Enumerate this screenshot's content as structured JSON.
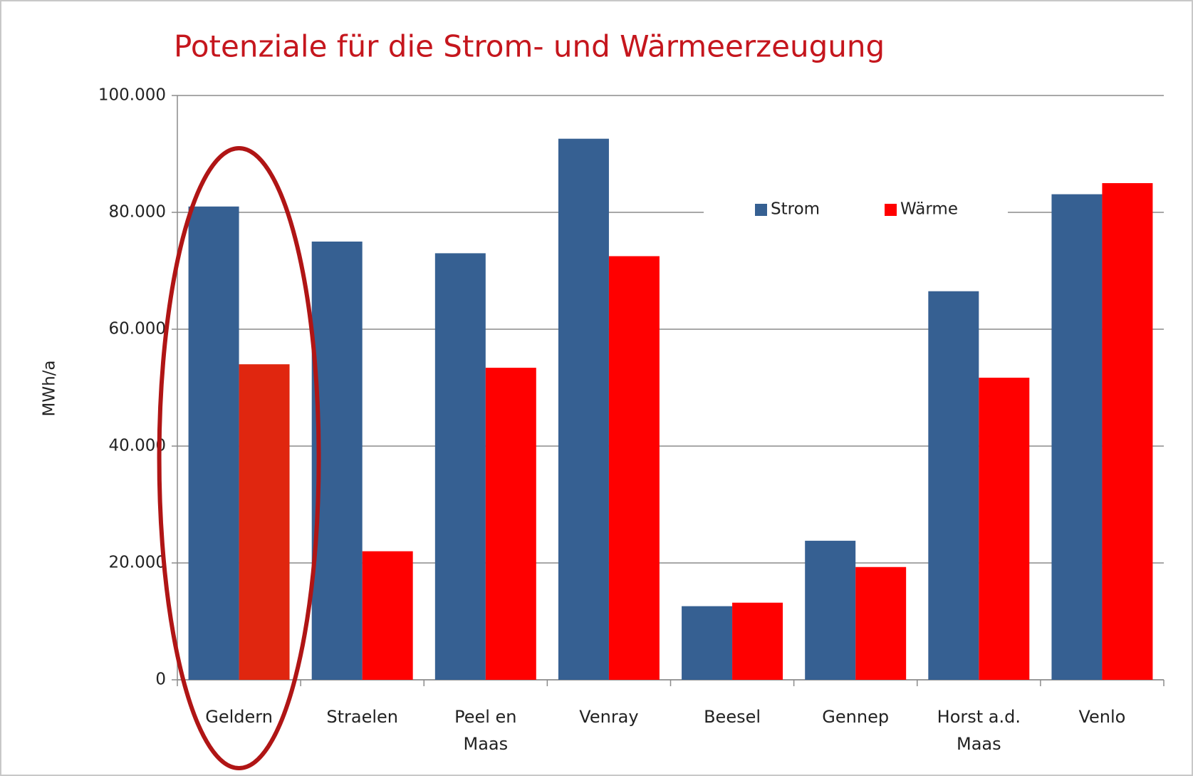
{
  "chart_data": {
    "type": "bar",
    "title": "Potenziale für die Strom- und Wärmeerzeugung",
    "y_label": "MWh/a",
    "categories": [
      "Geldern",
      "Straelen",
      "Peel en Maas",
      "Venray",
      "Beesel",
      "Gennep",
      "Horst a.d. Maas",
      "Venlo"
    ],
    "series": [
      {
        "name": "Strom",
        "color": "#366092",
        "values": [
          81000,
          75000,
          73000,
          92600,
          12600,
          23800,
          66500,
          83100
        ]
      },
      {
        "name": "Wärme",
        "color": "#ff0000",
        "values": [
          54000,
          22000,
          53400,
          72500,
          13200,
          19300,
          51700,
          85000
        ]
      }
    ],
    "highlight": {
      "category": 0,
      "color": "#b01515",
      "bar_color": "#e0260f"
    },
    "ylim": [
      0,
      100000
    ],
    "yticks": [
      0,
      {
        "value": 20000,
        "label": "20.000"
      },
      {
        "value": 40000,
        "label": "40.000"
      },
      {
        "value": 60000,
        "label": "60.000"
      },
      {
        "value": 80000,
        "label": "80.000"
      },
      {
        "value": 100000,
        "label": "100.000"
      }
    ],
    "grid": true,
    "legend": "top-right"
  }
}
